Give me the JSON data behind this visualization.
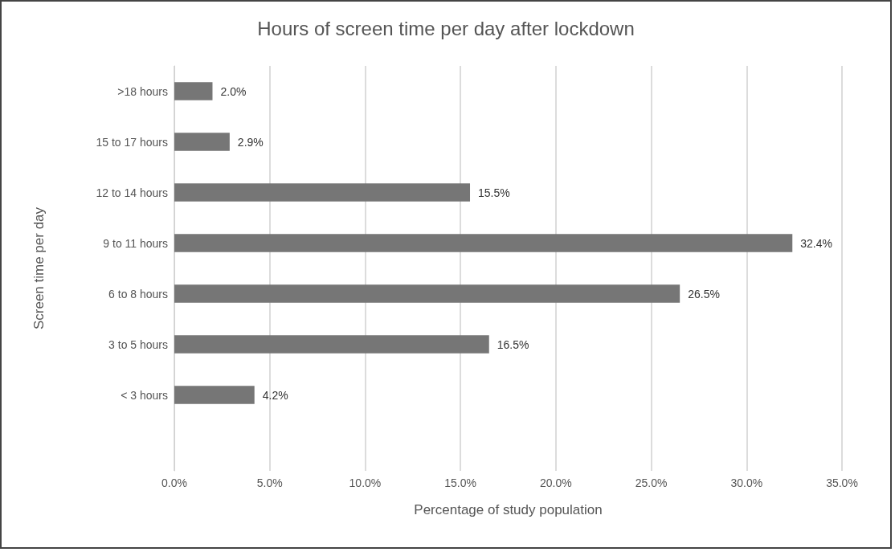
{
  "chart_data": {
    "type": "bar",
    "orientation": "horizontal",
    "title": "Hours of screen time per day after lockdown",
    "xlabel": "Percentage of study population",
    "ylabel": "Screen time per day",
    "categories": [
      ">18 hours",
      "15 to 17 hours",
      "12 to 14 hours",
      "9 to 11 hours",
      "6 to 8 hours",
      "3 to 5 hours",
      "< 3 hours",
      null
    ],
    "values": [
      2.0,
      2.9,
      15.5,
      32.4,
      26.5,
      16.5,
      4.2,
      null
    ],
    "value_labels": [
      "2.0%",
      "2.9%",
      "15.5%",
      "32.4%",
      "26.5%",
      "16.5%",
      "4.2%",
      null
    ],
    "color": "#767676",
    "xlim": [
      0,
      35
    ],
    "xticks": [
      {
        "value": 0,
        "label": "0.0%"
      },
      {
        "value": 5,
        "label": "5.0%"
      },
      {
        "value": 10,
        "label": "10.0%"
      },
      {
        "value": 15,
        "label": "15.0%"
      },
      {
        "value": 20,
        "label": "20.0%"
      },
      {
        "value": 25,
        "label": "25.0%"
      },
      {
        "value": 30,
        "label": "30.0%"
      },
      {
        "value": 35,
        "label": "35.0%"
      }
    ],
    "grid": "x"
  }
}
